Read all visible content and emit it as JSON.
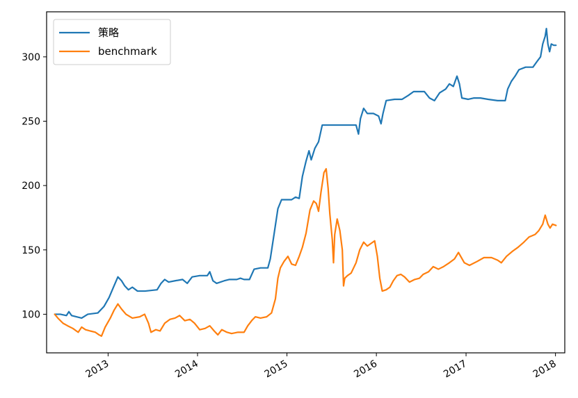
{
  "chart_data": {
    "type": "line",
    "title": "",
    "xlabel": "",
    "ylabel": "",
    "ylim": [
      70,
      335
    ],
    "x_ticks": [
      "2013",
      "2014",
      "2015",
      "2016",
      "2017",
      "2018"
    ],
    "y_ticks": [
      100,
      150,
      200,
      250,
      300
    ],
    "grid": false,
    "legend_position": "top-left",
    "series": [
      {
        "name": "策略",
        "color": "#1f77b4",
        "points": [
          [
            "2012-05-28",
            100
          ],
          [
            "2012-06-20",
            100
          ],
          [
            "2012-07-15",
            99
          ],
          [
            "2012-07-25",
            102
          ],
          [
            "2012-08-05",
            99
          ],
          [
            "2012-09-15",
            97
          ],
          [
            "2012-10-10",
            100
          ],
          [
            "2012-11-20",
            101
          ],
          [
            "2012-12-15",
            106
          ],
          [
            "2013-01-05",
            113
          ],
          [
            "2013-01-25",
            122
          ],
          [
            "2013-02-10",
            129
          ],
          [
            "2013-02-25",
            126
          ],
          [
            "2013-03-10",
            122
          ],
          [
            "2013-03-25",
            119
          ],
          [
            "2013-04-10",
            121
          ],
          [
            "2013-05-01",
            118
          ],
          [
            "2013-06-01",
            118
          ],
          [
            "2013-07-20",
            119
          ],
          [
            "2013-08-05",
            124
          ],
          [
            "2013-08-20",
            127
          ],
          [
            "2013-09-05",
            125
          ],
          [
            "2013-10-01",
            126
          ],
          [
            "2013-11-01",
            127
          ],
          [
            "2013-11-20",
            124
          ],
          [
            "2013-12-10",
            129
          ],
          [
            "2014-01-10",
            130
          ],
          [
            "2014-02-10",
            130
          ],
          [
            "2014-02-20",
            133
          ],
          [
            "2014-03-05",
            126
          ],
          [
            "2014-03-20",
            124
          ],
          [
            "2014-04-20",
            126
          ],
          [
            "2014-05-10",
            127
          ],
          [
            "2014-06-10",
            127
          ],
          [
            "2014-06-25",
            128
          ],
          [
            "2014-07-10",
            127
          ],
          [
            "2014-08-01",
            127
          ],
          [
            "2014-08-20",
            135
          ],
          [
            "2014-09-15",
            136
          ],
          [
            "2014-10-15",
            136
          ],
          [
            "2014-10-25",
            143
          ],
          [
            "2014-11-10",
            163
          ],
          [
            "2014-11-25",
            182
          ],
          [
            "2014-12-10",
            189
          ],
          [
            "2015-01-20",
            189
          ],
          [
            "2015-02-05",
            191
          ],
          [
            "2015-02-20",
            190
          ],
          [
            "2015-03-05",
            207
          ],
          [
            "2015-03-20",
            219
          ],
          [
            "2015-04-01",
            227
          ],
          [
            "2015-04-10",
            220
          ],
          [
            "2015-04-25",
            229
          ],
          [
            "2015-05-10",
            234
          ],
          [
            "2015-05-25",
            247
          ],
          [
            "2015-06-10",
            247
          ],
          [
            "2015-08-01",
            247
          ],
          [
            "2015-09-15",
            247
          ],
          [
            "2015-10-10",
            247
          ],
          [
            "2015-10-20",
            240
          ],
          [
            "2015-10-28",
            252
          ],
          [
            "2015-11-10",
            260
          ],
          [
            "2015-11-25",
            256
          ],
          [
            "2015-12-20",
            256
          ],
          [
            "2016-01-10",
            254
          ],
          [
            "2016-01-20",
            248
          ],
          [
            "2016-01-28",
            256
          ],
          [
            "2016-02-10",
            266
          ],
          [
            "2016-03-15",
            267
          ],
          [
            "2016-04-15",
            267
          ],
          [
            "2016-05-10",
            270
          ],
          [
            "2016-06-01",
            273
          ],
          [
            "2016-07-15",
            273
          ],
          [
            "2016-08-05",
            268
          ],
          [
            "2016-08-25",
            266
          ],
          [
            "2016-09-15",
            272
          ],
          [
            "2016-10-10",
            275
          ],
          [
            "2016-10-25",
            279
          ],
          [
            "2016-11-10",
            277
          ],
          [
            "2016-11-25",
            285
          ],
          [
            "2016-12-05",
            279
          ],
          [
            "2016-12-15",
            268
          ],
          [
            "2017-01-10",
            267
          ],
          [
            "2017-02-01",
            268
          ],
          [
            "2017-03-01",
            268
          ],
          [
            "2017-04-01",
            267
          ],
          [
            "2017-05-10",
            266
          ],
          [
            "2017-06-10",
            266
          ],
          [
            "2017-06-20",
            275
          ],
          [
            "2017-07-05",
            281
          ],
          [
            "2017-07-20",
            285
          ],
          [
            "2017-08-05",
            290
          ],
          [
            "2017-09-01",
            292
          ],
          [
            "2017-10-01",
            292
          ],
          [
            "2017-10-20",
            297
          ],
          [
            "2017-11-01",
            300
          ],
          [
            "2017-11-10",
            310
          ],
          [
            "2017-11-20",
            316
          ],
          [
            "2017-11-25",
            322
          ],
          [
            "2017-12-01",
            310
          ],
          [
            "2017-12-08",
            304
          ],
          [
            "2017-12-15",
            310
          ],
          [
            "2017-12-25",
            309
          ],
          [
            "2018-01-03",
            309
          ]
        ]
      },
      {
        "name": "benchmark",
        "color": "#ff7f0e",
        "points": [
          [
            "2012-05-28",
            100
          ],
          [
            "2012-06-10",
            97
          ],
          [
            "2012-07-01",
            93
          ],
          [
            "2012-07-20",
            91
          ],
          [
            "2012-08-10",
            89
          ],
          [
            "2012-09-01",
            86
          ],
          [
            "2012-09-15",
            90
          ],
          [
            "2012-10-01",
            88
          ],
          [
            "2012-10-20",
            87
          ],
          [
            "2012-11-10",
            86
          ],
          [
            "2012-11-25",
            84
          ],
          [
            "2012-12-05",
            83
          ],
          [
            "2012-12-20",
            90
          ],
          [
            "2013-01-10",
            97
          ],
          [
            "2013-01-25",
            103
          ],
          [
            "2013-02-10",
            108
          ],
          [
            "2013-02-25",
            104
          ],
          [
            "2013-03-15",
            100
          ],
          [
            "2013-04-10",
            97
          ],
          [
            "2013-05-10",
            98
          ],
          [
            "2013-05-30",
            100
          ],
          [
            "2013-06-15",
            93
          ],
          [
            "2013-06-25",
            86
          ],
          [
            "2013-07-15",
            88
          ],
          [
            "2013-08-01",
            87
          ],
          [
            "2013-08-20",
            93
          ],
          [
            "2013-09-10",
            96
          ],
          [
            "2013-10-01",
            97
          ],
          [
            "2013-10-20",
            99
          ],
          [
            "2013-11-10",
            95
          ],
          [
            "2013-12-01",
            96
          ],
          [
            "2013-12-20",
            93
          ],
          [
            "2014-01-10",
            88
          ],
          [
            "2014-02-01",
            89
          ],
          [
            "2014-02-20",
            91
          ],
          [
            "2014-03-10",
            87
          ],
          [
            "2014-03-25",
            84
          ],
          [
            "2014-04-10",
            88
          ],
          [
            "2014-05-01",
            86
          ],
          [
            "2014-05-20",
            85
          ],
          [
            "2014-06-15",
            86
          ],
          [
            "2014-07-10",
            86
          ],
          [
            "2014-07-25",
            91
          ],
          [
            "2014-08-10",
            95
          ],
          [
            "2014-08-25",
            98
          ],
          [
            "2014-09-15",
            97
          ],
          [
            "2014-10-10",
            98
          ],
          [
            "2014-10-30",
            101
          ],
          [
            "2014-11-15",
            112
          ],
          [
            "2014-11-25",
            128
          ],
          [
            "2014-12-05",
            136
          ],
          [
            "2014-12-20",
            141
          ],
          [
            "2015-01-05",
            145
          ],
          [
            "2015-01-20",
            139
          ],
          [
            "2015-02-05",
            138
          ],
          [
            "2015-02-20",
            145
          ],
          [
            "2015-03-05",
            152
          ],
          [
            "2015-03-20",
            163
          ],
          [
            "2015-04-05",
            181
          ],
          [
            "2015-04-20",
            188
          ],
          [
            "2015-05-01",
            186
          ],
          [
            "2015-05-10",
            180
          ],
          [
            "2015-05-20",
            195
          ],
          [
            "2015-06-01",
            210
          ],
          [
            "2015-06-10",
            213
          ],
          [
            "2015-06-18",
            198
          ],
          [
            "2015-06-25",
            178
          ],
          [
            "2015-07-05",
            158
          ],
          [
            "2015-07-10",
            140
          ],
          [
            "2015-07-15",
            162
          ],
          [
            "2015-07-25",
            174
          ],
          [
            "2015-08-05",
            165
          ],
          [
            "2015-08-15",
            150
          ],
          [
            "2015-08-20",
            122
          ],
          [
            "2015-08-25",
            128
          ],
          [
            "2015-09-05",
            130
          ],
          [
            "2015-09-20",
            132
          ],
          [
            "2015-10-10",
            140
          ],
          [
            "2015-10-25",
            150
          ],
          [
            "2015-11-10",
            156
          ],
          [
            "2015-11-25",
            153
          ],
          [
            "2015-12-10",
            155
          ],
          [
            "2015-12-25",
            157
          ],
          [
            "2016-01-05",
            145
          ],
          [
            "2016-01-15",
            128
          ],
          [
            "2016-01-25",
            118
          ],
          [
            "2016-02-10",
            119
          ],
          [
            "2016-02-25",
            121
          ],
          [
            "2016-03-10",
            126
          ],
          [
            "2016-03-25",
            130
          ],
          [
            "2016-04-10",
            131
          ],
          [
            "2016-04-25",
            129
          ],
          [
            "2016-05-15",
            125
          ],
          [
            "2016-06-05",
            127
          ],
          [
            "2016-06-25",
            128
          ],
          [
            "2016-07-10",
            131
          ],
          [
            "2016-08-01",
            133
          ],
          [
            "2016-08-20",
            137
          ],
          [
            "2016-09-10",
            135
          ],
          [
            "2016-10-01",
            137
          ],
          [
            "2016-10-25",
            140
          ],
          [
            "2016-11-15",
            143
          ],
          [
            "2016-12-01",
            148
          ],
          [
            "2016-12-10",
            145
          ],
          [
            "2016-12-25",
            140
          ],
          [
            "2017-01-15",
            138
          ],
          [
            "2017-02-15",
            141
          ],
          [
            "2017-03-15",
            144
          ],
          [
            "2017-04-15",
            144
          ],
          [
            "2017-05-10",
            142
          ],
          [
            "2017-05-25",
            140
          ],
          [
            "2017-06-15",
            145
          ],
          [
            "2017-07-10",
            149
          ],
          [
            "2017-08-01",
            152
          ],
          [
            "2017-08-25",
            156
          ],
          [
            "2017-09-15",
            160
          ],
          [
            "2017-10-10",
            162
          ],
          [
            "2017-10-25",
            165
          ],
          [
            "2017-11-10",
            170
          ],
          [
            "2017-11-20",
            177
          ],
          [
            "2017-12-01",
            170
          ],
          [
            "2017-12-10",
            167
          ],
          [
            "2017-12-20",
            170
          ],
          [
            "2018-01-03",
            169
          ]
        ]
      }
    ]
  }
}
